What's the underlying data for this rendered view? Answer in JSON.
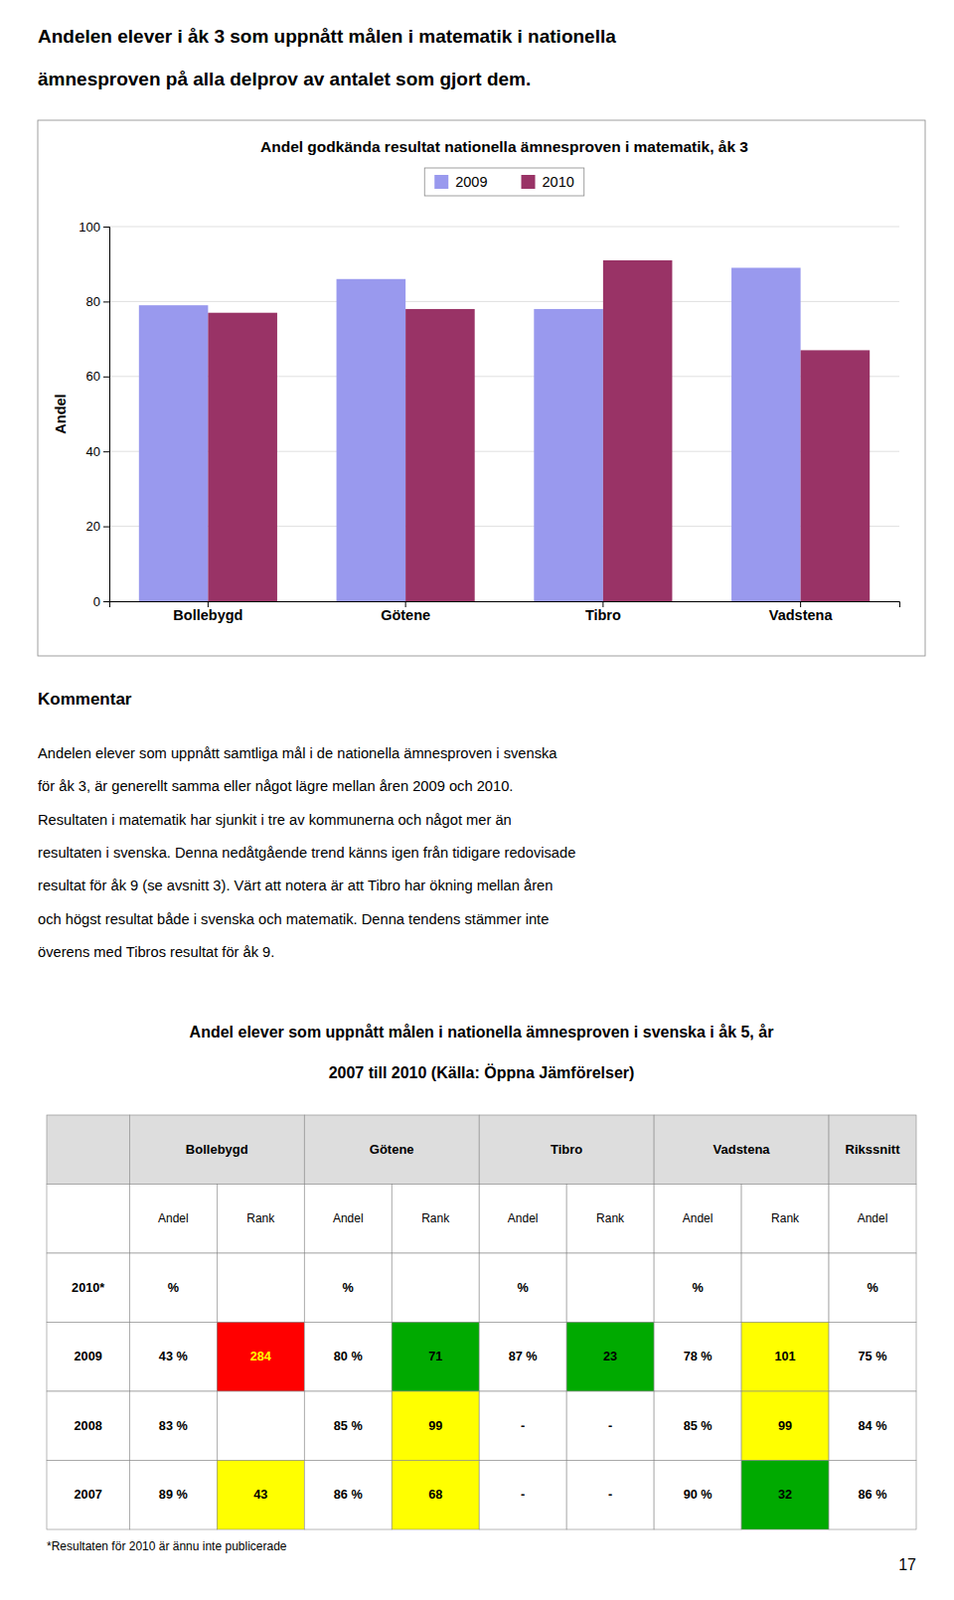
{
  "page_title": [
    "Andelen elever i åk 3 som uppnått målen i matematik i nationella",
    "ämnesproven på alla delprov av antalet som gjort dem."
  ],
  "chart_data": {
    "type": "bar",
    "title": "Andel godkända resultat nationella ämnesproven i matematik, åk 3",
    "categories": [
      "Bollebygd",
      "Götene",
      "Tibro",
      "Vadstena"
    ],
    "series": [
      {
        "name": "2009",
        "color": "#9999EE",
        "values": [
          79,
          86,
          78,
          89
        ]
      },
      {
        "name": "2010",
        "color": "#993366",
        "values": [
          77,
          78,
          91,
          67
        ]
      }
    ],
    "ylabel": "Andel",
    "ylim": [
      0,
      100
    ],
    "yticks": [
      0,
      20,
      40,
      60,
      80,
      100
    ],
    "grid": true,
    "legend": "top"
  },
  "commentary": {
    "title": "Kommentar",
    "lines": [
      "Andelen elever som uppnått samtliga mål i de nationella ämnesproven i svenska",
      "för åk 3, är generellt samma eller något lägre mellan åren 2009 och 2010.",
      "Resultaten i matematik har sjunkit i tre av kommunerna och något mer än",
      "resultaten i svenska. Denna nedåtgående trend känns igen från tidigare redovisade",
      "resultat för åk 9 (se avsnitt 3). Värt att notera är att Tibro har ökning mellan åren",
      "och högst resultat både i svenska och matematik. Denna tendens stämmer inte",
      "överens med Tibros resultat för åk 9."
    ]
  },
  "table": {
    "title": [
      "Andel elever som uppnått målen i nationella ämnesproven i svenska i åk 5, år",
      "2007 till 2010 (Källa: Öppna Jämförelser)"
    ],
    "groups": [
      {
        "label": null,
        "span": 1
      },
      {
        "label": "Bollebygd",
        "span": 2
      },
      {
        "label": "Götene",
        "span": 2
      },
      {
        "label": "Tibro",
        "span": 2
      },
      {
        "label": "Vadstena",
        "span": 2
      },
      {
        "label": "Rikssnitt",
        "span": 1
      }
    ],
    "columns": [
      null,
      "Andel",
      "Rank",
      "Andel",
      "Rank",
      "Andel",
      "Rank",
      "Andel",
      "Rank",
      "Andel"
    ],
    "rows": [
      [
        "2010*",
        "%",
        null,
        "%",
        null,
        "%",
        null,
        "%",
        null,
        "%"
      ],
      [
        "2009",
        "43 %",
        "284",
        "80 %",
        "71",
        "87 %",
        "23",
        "78 %",
        "101",
        "75 %"
      ],
      [
        "2008",
        "83 %",
        null,
        "85 %",
        "99",
        "-",
        "-",
        "85 %",
        "99",
        "84 %"
      ],
      [
        "2007",
        "89 %",
        "43",
        "86 %",
        "68",
        "-",
        "-",
        "90 %",
        "32",
        "86 %"
      ]
    ],
    "cell_colors": [
      [
        null,
        null,
        null,
        null,
        null,
        null,
        null,
        null,
        null,
        null
      ],
      [
        null,
        null,
        "#FF0000",
        null,
        "#00AA00",
        null,
        "#00AA00",
        null,
        "#FFFF00",
        null
      ],
      [
        null,
        null,
        null,
        null,
        "#FFFF00",
        null,
        null,
        null,
        "#FFFF00",
        null
      ],
      [
        null,
        null,
        "#FFFF00",
        null,
        "#FFFF00",
        null,
        null,
        null,
        "#00AA00",
        null
      ]
    ]
  },
  "footnote": "*Resultaten för 2010 är ännu inte publicerade",
  "page_number": "17"
}
